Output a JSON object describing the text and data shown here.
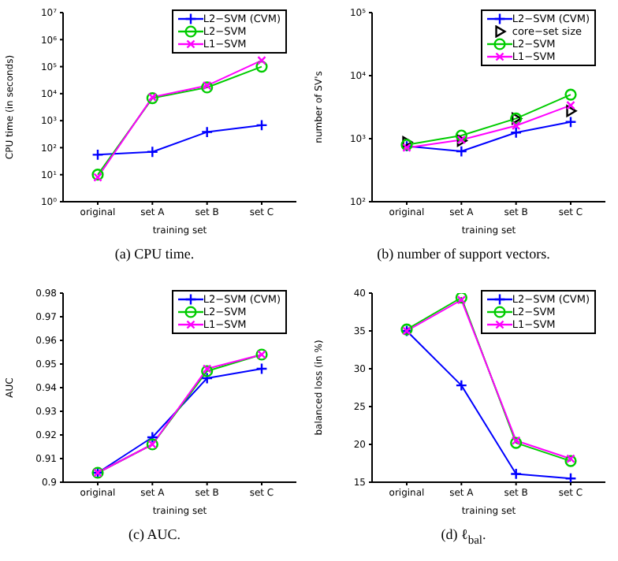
{
  "chart_data": [
    {
      "type": "line",
      "xlabel": "training set",
      "ylabel": "CPU time (in seconds)",
      "annotations": [
        "(a) CPU time."
      ],
      "categories": [
        "original",
        "set A",
        "set B",
        "set C"
      ],
      "log": true,
      "ylim": [
        1,
        10000000
      ],
      "yticks": [
        {
          "value": 1,
          "label": "10⁰"
        },
        {
          "value": 10,
          "label": "10¹"
        },
        {
          "value": 100,
          "label": "10²"
        },
        {
          "value": 1000,
          "label": "10³"
        },
        {
          "value": 10000,
          "label": "10⁴"
        },
        {
          "value": 100000,
          "label": "10⁵"
        },
        {
          "value": 1000000,
          "label": "10⁶"
        },
        {
          "value": 10000000,
          "label": "10⁷"
        }
      ],
      "legend": "top right",
      "series": [
        {
          "name": "L2−SVM (CVM)",
          "color": "#0000ff",
          "marker": "cross",
          "values": [
            55,
            70,
            380,
            680
          ]
        },
        {
          "name": "L2−SVM",
          "color": "#00cc00",
          "marker": "circle",
          "values": [
            10,
            6800,
            17000,
            100000
          ]
        },
        {
          "name": "L1−SVM",
          "color": "#ff00ff",
          "marker": "x",
          "values": [
            8,
            7400,
            20000,
            170000
          ]
        }
      ]
    },
    {
      "type": "line",
      "xlabel": "training set",
      "ylabel": "number of SV's",
      "annotations": [
        "(b) number of support vectors."
      ],
      "categories": [
        "original",
        "set A",
        "set B",
        "set C"
      ],
      "log": true,
      "ylim": [
        100,
        100000
      ],
      "yticks": [
        {
          "value": 100,
          "label": "10²"
        },
        {
          "value": 1000,
          "label": "10³"
        },
        {
          "value": 10000,
          "label": "10⁴"
        },
        {
          "value": 100000,
          "label": "10⁵"
        }
      ],
      "legend": "top right",
      "series": [
        {
          "name": "L2−SVM (CVM)",
          "color": "#0000ff",
          "marker": "cross",
          "values": [
            760,
            630,
            1250,
            1840
          ]
        },
        {
          "name": "core−set size",
          "type": "scatter",
          "color": "#000000",
          "marker": "triangle",
          "values": [
            880,
            930,
            2090,
            2750
          ]
        },
        {
          "name": "L2−SVM",
          "color": "#00cc00",
          "marker": "circle",
          "values": [
            800,
            1120,
            2090,
            5000
          ]
        },
        {
          "name": "L1−SVM",
          "color": "#ff00ff",
          "marker": "x",
          "values": [
            720,
            960,
            1610,
            3380
          ]
        }
      ]
    },
    {
      "type": "line",
      "xlabel": "training set",
      "ylabel": "AUC",
      "annotations": [
        "(c) AUC."
      ],
      "categories": [
        "original",
        "set A",
        "set B",
        "set C"
      ],
      "ylim": [
        0.9,
        0.98
      ],
      "yticks": [
        0.9,
        0.91,
        0.92,
        0.93,
        0.94,
        0.95,
        0.96,
        0.97,
        0.98
      ],
      "legend": "top right",
      "series": [
        {
          "name": "L2−SVM (CVM)",
          "color": "#0000ff",
          "marker": "cross",
          "values": [
            0.904,
            0.919,
            0.944,
            0.948
          ]
        },
        {
          "name": "L2−SVM",
          "color": "#00cc00",
          "marker": "circle",
          "values": [
            0.904,
            0.916,
            0.947,
            0.954
          ]
        },
        {
          "name": "L1−SVM",
          "color": "#ff00ff",
          "marker": "x",
          "values": [
            0.904,
            0.916,
            0.948,
            0.954
          ]
        }
      ]
    },
    {
      "type": "line",
      "xlabel": "training set",
      "ylabel": "balanced loss (in %)",
      "annotations": [
        "(d) ℓ$_{bal}$."
      ],
      "categories": [
        "original",
        "set A",
        "set B",
        "set C"
      ],
      "ylim": [
        15,
        40
      ],
      "yticks": [
        15,
        20,
        25,
        30,
        35,
        40
      ],
      "legend": "top right",
      "series": [
        {
          "name": "L2−SVM (CVM)",
          "color": "#0000ff",
          "marker": "cross",
          "values": [
            35.0,
            27.8,
            16.1,
            15.5
          ]
        },
        {
          "name": "L2−SVM",
          "color": "#00cc00",
          "marker": "circle",
          "values": [
            35.2,
            39.4,
            20.2,
            17.8
          ]
        },
        {
          "name": "L1−SVM",
          "color": "#ff00ff",
          "marker": "x",
          "values": [
            35.0,
            39.1,
            20.5,
            18.1
          ]
        }
      ]
    }
  ]
}
